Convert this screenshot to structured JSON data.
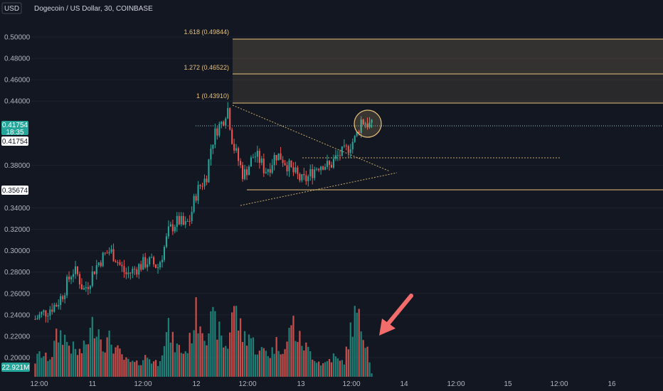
{
  "header": {
    "symbol": "Dogecoin / US Dollar, 30, COINBASE",
    "currency": "USD"
  },
  "colors": {
    "background": "#131722",
    "up": "#26a69a",
    "down": "#ef5350",
    "volume_up": "#1f8a80",
    "volume_down": "#d9534f",
    "fib": "#e8c27a",
    "grid": "#1e222d",
    "axis_text": "#b2b5be"
  },
  "price_tags": {
    "current": "0.41754",
    "countdown": "18:35",
    "crosshair": "0.41754",
    "support": "0.35674",
    "volume": "22.921M"
  },
  "fib_levels": [
    {
      "ratio": "1.618",
      "label": "1.618 (0.49844)",
      "value": 0.49844
    },
    {
      "ratio": "1.272",
      "label": "1.272 (0.46522)",
      "value": 0.46522
    },
    {
      "ratio": "1",
      "label": "1 (0.43910)",
      "value": 0.4391
    }
  ],
  "chart_data": {
    "type": "candlestick",
    "title": "Dogecoin / US Dollar, 30, COINBASE",
    "ylim": [
      0.18,
      0.52
    ],
    "yticks": [
      "0.50000",
      "0.48000",
      "0.46000",
      "0.44000",
      "0.38000",
      "0.34000",
      "0.32000",
      "0.30000",
      "0.28000",
      "0.26000",
      "0.24000",
      "0.22000",
      "0.20000"
    ],
    "ytick_values": [
      0.5,
      0.48,
      0.46,
      0.44,
      0.38,
      0.34,
      0.32,
      0.3,
      0.28,
      0.26,
      0.24,
      0.22,
      0.2
    ],
    "xticks": [
      "12:00",
      "11",
      "12:00",
      "12",
      "12:00",
      "13",
      "12:00",
      "14",
      "12:00",
      "15",
      "12:00",
      "16"
    ],
    "price_path": [
      0.236,
      0.24,
      0.243,
      0.247,
      0.25,
      0.258,
      0.27,
      0.282,
      0.277,
      0.263,
      0.27,
      0.282,
      0.29,
      0.296,
      0.3,
      0.294,
      0.285,
      0.278,
      0.28,
      0.284,
      0.287,
      0.29,
      0.288,
      0.285,
      0.3,
      0.318,
      0.325,
      0.328,
      0.322,
      0.33,
      0.352,
      0.362,
      0.368,
      0.4,
      0.414,
      0.42,
      0.435,
      0.4,
      0.385,
      0.37,
      0.38,
      0.39,
      0.385,
      0.375,
      0.38,
      0.39,
      0.388,
      0.382,
      0.375,
      0.37,
      0.365,
      0.368,
      0.375,
      0.38,
      0.382,
      0.378,
      0.385,
      0.39,
      0.392,
      0.4,
      0.405,
      0.422,
      0.42,
      0.416
    ],
    "volume_path": [
      0.2,
      0.3,
      0.24,
      0.26,
      0.5,
      0.56,
      0.44,
      0.36,
      0.3,
      0.34,
      0.5,
      0.7,
      0.6,
      0.4,
      0.48,
      0.36,
      0.28,
      0.2,
      0.18,
      0.16,
      0.22,
      0.26,
      0.2,
      0.18,
      0.44,
      0.6,
      0.4,
      0.36,
      0.3,
      0.46,
      0.8,
      0.72,
      0.56,
      0.7,
      0.66,
      0.44,
      0.36,
      0.96,
      0.7,
      0.5,
      0.56,
      0.4,
      0.3,
      0.36,
      0.28,
      0.42,
      0.4,
      0.34,
      0.76,
      0.5,
      0.44,
      0.34,
      0.28,
      0.2,
      0.16,
      0.22,
      0.26,
      0.18,
      0.22,
      0.58,
      0.8,
      0.64,
      0.5,
      0.06
    ]
  }
}
